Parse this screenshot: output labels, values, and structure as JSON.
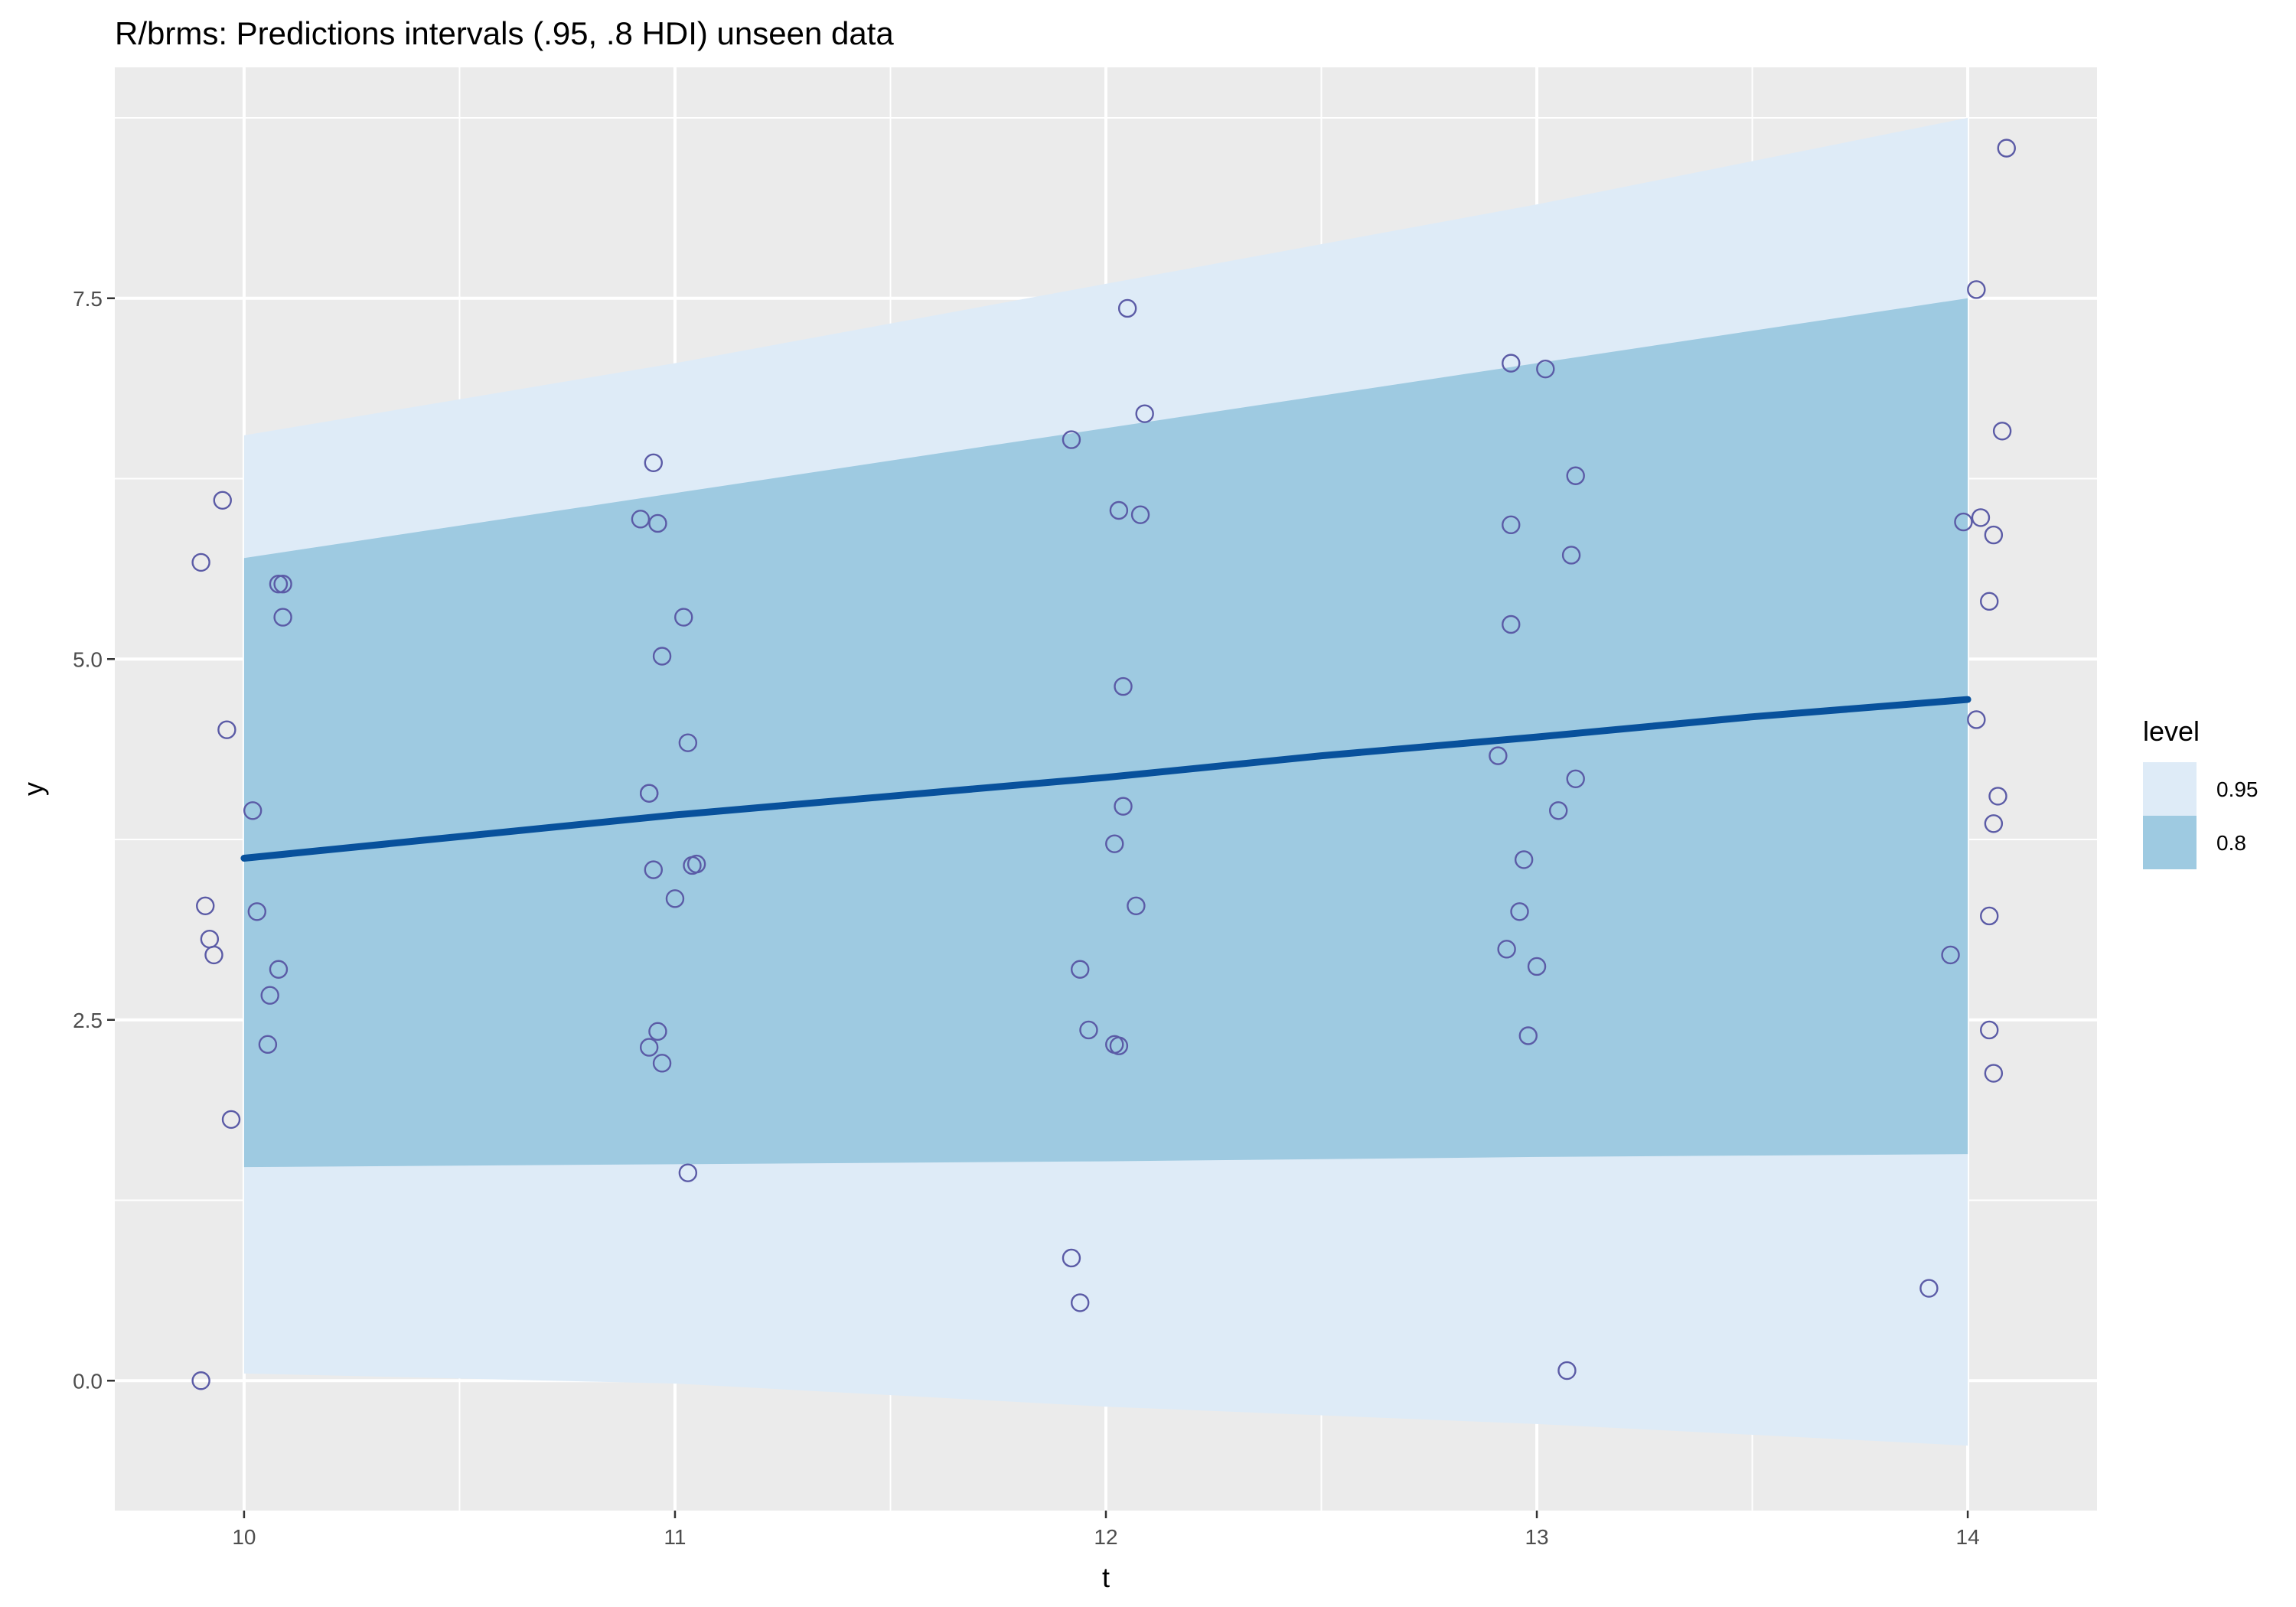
{
  "chart_data": {
    "type": "scatter",
    "title": "R/brms: Predictions intervals (.95, .8 HDI) unseen data",
    "xlabel": "t",
    "ylabel": "y",
    "xlim": [
      9.7,
      14.3
    ],
    "ylim": [
      -0.9,
      9.1
    ],
    "x_ticks": [
      10,
      11,
      12,
      13,
      14
    ],
    "x_tick_labels": [
      "10",
      "11",
      "12",
      "13",
      "14"
    ],
    "y_ticks": [
      0.0,
      2.5,
      5.0,
      7.5
    ],
    "y_tick_labels": [
      "0.0",
      "2.5",
      "5.0",
      "7.5"
    ],
    "grid": true,
    "background": "#ebebeb",
    "legend": {
      "title": "level",
      "position": "right",
      "entries": [
        {
          "label": "0.95",
          "color": "#deebf7"
        },
        {
          "label": "0.8",
          "color": "#9ecae1"
        }
      ]
    },
    "bands": [
      {
        "level": "0.95",
        "color": "#deebf7",
        "x": [
          10,
          11,
          12,
          13,
          14
        ],
        "lower": [
          0.05,
          -0.02,
          -0.18,
          -0.3,
          -0.45
        ],
        "upper": [
          6.55,
          7.05,
          7.6,
          8.15,
          8.75
        ]
      },
      {
        "level": "0.8",
        "color": "#9ecae1",
        "x": [
          10,
          11,
          12,
          13,
          14
        ],
        "lower": [
          1.48,
          1.5,
          1.52,
          1.55,
          1.57
        ],
        "upper": [
          5.7,
          6.15,
          6.6,
          7.05,
          7.5
        ]
      }
    ],
    "mean_line": {
      "color": "#08519c",
      "x": [
        10,
        10.5,
        11,
        11.5,
        12,
        12.5,
        13,
        13.5,
        14
      ],
      "y": [
        3.62,
        3.77,
        3.92,
        4.05,
        4.18,
        4.33,
        4.46,
        4.6,
        4.72
      ]
    },
    "points": {
      "color": "#5b5ba6",
      "x": [
        9.9,
        9.95,
        9.91,
        9.92,
        9.93,
        9.96,
        9.9,
        9.97,
        10.02,
        10.03,
        10.06,
        10.08,
        10.09,
        10.055,
        10.08,
        10.09,
        10.92,
        10.95,
        10.96,
        10.97,
        10.94,
        10.95,
        11.02,
        11.03,
        11.04,
        11.05,
        11.0,
        10.94,
        10.96,
        10.97,
        10.94,
        11.03,
        11.92,
        12.05,
        12.09,
        12.03,
        12.08,
        12.04,
        12.04,
        12.02,
        12.07,
        11.94,
        11.96,
        12.02,
        12.03,
        11.92,
        11.94,
        12.94,
        13.02,
        13.09,
        12.94,
        13.08,
        12.94,
        12.91,
        13.09,
        13.05,
        12.97,
        12.96,
        12.93,
        13.0,
        12.98,
        13.07,
        14.02,
        14.09,
        14.08,
        13.99,
        14.03,
        14.06,
        14.05,
        14.02,
        14.07,
        14.06,
        14.05,
        13.96,
        14.05,
        14.06,
        13.91
      ],
      "y": [
        0.0,
        6.1,
        3.29,
        3.06,
        2.95,
        4.51,
        5.67,
        1.81,
        3.95,
        3.25,
        2.67,
        2.85,
        5.52,
        2.33,
        5.52,
        5.29,
        5.97,
        6.36,
        5.94,
        5.02,
        4.07,
        3.54,
        5.29,
        4.42,
        3.57,
        3.58,
        3.34,
        2.31,
        2.42,
        2.2,
        4.07,
        1.44,
        6.52,
        7.43,
        6.7,
        6.03,
        6.0,
        4.81,
        3.98,
        3.72,
        3.29,
        2.85,
        2.43,
        2.33,
        2.32,
        0.85,
        0.54,
        7.05,
        7.01,
        6.27,
        5.93,
        5.72,
        5.24,
        4.33,
        4.17,
        3.95,
        3.61,
        3.25,
        2.99,
        2.87,
        2.39,
        0.07,
        7.56,
        8.54,
        6.58,
        5.95,
        5.98,
        5.86,
        5.4,
        4.58,
        4.05,
        3.86,
        3.22,
        2.95,
        2.43,
        2.13,
        0.64
      ]
    }
  }
}
